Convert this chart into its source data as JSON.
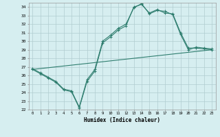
{
  "xlabel": "Humidex (Indice chaleur)",
  "background_color": "#d6eef0",
  "grid_color": "#b0ccd0",
  "line_color": "#2e7d6e",
  "xlim": [
    -0.5,
    23.5
  ],
  "ylim": [
    22,
    34.5
  ],
  "yticks": [
    22,
    23,
    24,
    25,
    26,
    27,
    28,
    29,
    30,
    31,
    32,
    33,
    34
  ],
  "xticks": [
    0,
    1,
    2,
    3,
    4,
    5,
    6,
    7,
    8,
    9,
    10,
    11,
    12,
    13,
    14,
    15,
    16,
    17,
    18,
    19,
    20,
    21,
    22,
    23
  ],
  "line1_x": [
    0,
    1,
    2,
    3,
    4,
    5,
    6,
    7,
    8,
    9,
    10,
    11,
    12,
    13,
    14,
    15,
    16,
    17,
    18,
    19,
    20,
    21,
    22,
    23
  ],
  "line1_y": [
    26.7,
    26.2,
    25.7,
    25.2,
    24.3,
    24.1,
    22.2,
    25.3,
    26.5,
    29.8,
    30.5,
    31.3,
    31.8,
    34.0,
    34.3,
    33.3,
    33.7,
    33.3,
    33.2,
    31.0,
    29.2,
    29.2,
    29.1,
    29.0
  ],
  "line2_x": [
    0,
    1,
    2,
    3,
    4,
    5,
    6,
    7,
    8,
    9,
    10,
    11,
    12,
    13,
    14,
    15,
    16,
    17,
    18,
    19,
    20,
    21,
    22,
    23
  ],
  "line2_y": [
    26.8,
    26.3,
    25.8,
    25.3,
    24.4,
    24.2,
    22.3,
    25.5,
    26.7,
    30.0,
    30.7,
    31.5,
    32.0,
    33.9,
    34.4,
    33.2,
    33.6,
    33.5,
    33.1,
    30.8,
    29.0,
    29.3,
    29.2,
    29.1
  ],
  "line3_x": [
    0,
    23
  ],
  "line3_y": [
    26.7,
    29.0
  ]
}
